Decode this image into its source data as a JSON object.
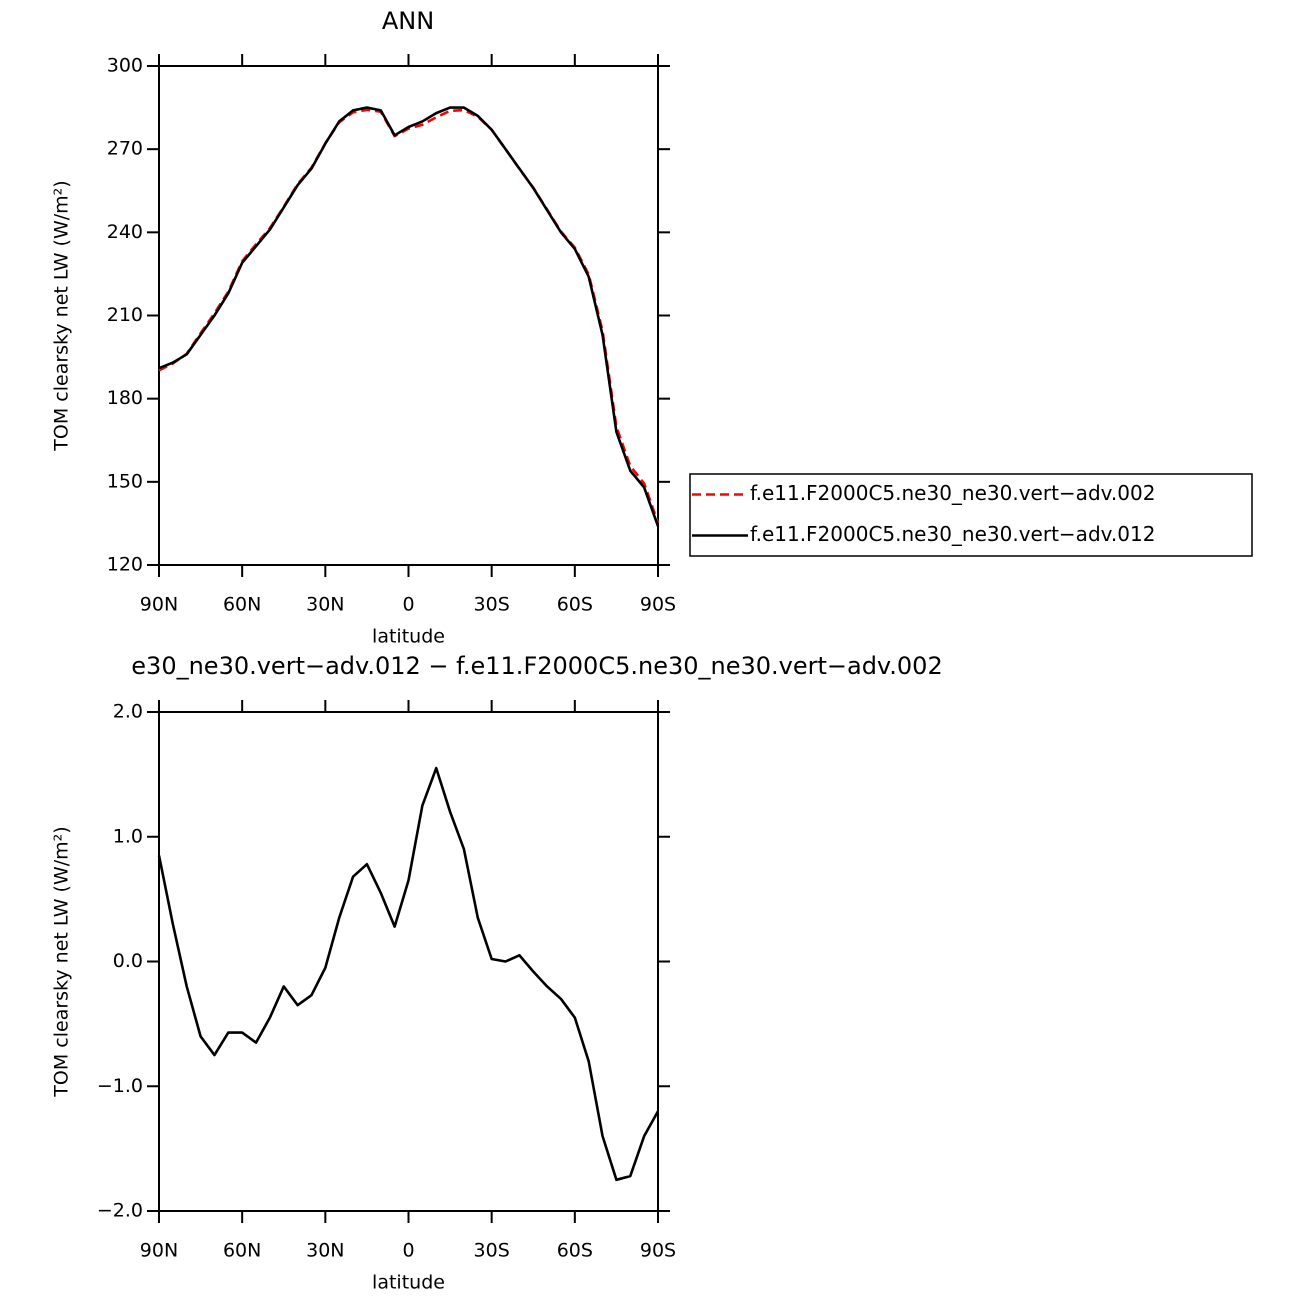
{
  "chart_data": [
    {
      "type": "line",
      "title": "ANN",
      "x_label": "latitude",
      "y_label": "TOM clearsky net LW (W/m²)",
      "x": [
        90,
        85,
        80,
        75,
        70,
        65,
        60,
        55,
        50,
        45,
        40,
        35,
        30,
        25,
        20,
        15,
        10,
        5,
        0,
        -5,
        -10,
        -15,
        -20,
        -25,
        -30,
        -35,
        -40,
        -45,
        -50,
        -55,
        -60,
        -65,
        -70,
        -75,
        -80,
        -85,
        -90
      ],
      "series": [
        {
          "name": "f.e11.F2000C5.ne30_ne30.vert−adv.002",
          "color": "#ff0000",
          "dash": true,
          "values": [
            190.2,
            192.7,
            196.2,
            203.6,
            210.8,
            218.6,
            229.6,
            235.7,
            241.5,
            249.2,
            257.4,
            263.3,
            272.1,
            279.7,
            283.3,
            284.2,
            283.5,
            274.7,
            277.4,
            278.8,
            281.5,
            283.8,
            284.1,
            281.7,
            277,
            270,
            262.9,
            256.1,
            248.2,
            240.3,
            234.5,
            224.8,
            204.4,
            169.8,
            155.7,
            149.4,
            135.2
          ]
        },
        {
          "name": "f.e11.F2000C5.ne30_ne30.vert−adv.012",
          "color": "#000000",
          "dash": false,
          "values": [
            191,
            193,
            196,
            203,
            210,
            218,
            229,
            235,
            241,
            249,
            257,
            263,
            272,
            280,
            284,
            285,
            284,
            275,
            278,
            280,
            283,
            285,
            285,
            282,
            277,
            270,
            263,
            256,
            248,
            240,
            234,
            224,
            203,
            168,
            154,
            148,
            134
          ]
        }
      ],
      "xlim": [
        90,
        -90
      ],
      "xticks": [
        {
          "value": 90,
          "label": "90N"
        },
        {
          "value": 60,
          "label": "60N"
        },
        {
          "value": 30,
          "label": "30N"
        },
        0,
        {
          "value": -30,
          "label": "30S"
        },
        {
          "value": -60,
          "label": "60S"
        },
        {
          "value": -90,
          "label": "90S"
        }
      ],
      "ylim": [
        120,
        300
      ],
      "yticks": [
        120,
        150,
        180,
        210,
        240,
        270,
        300
      ],
      "legend": "right"
    },
    {
      "type": "line",
      "title": "e30_ne30.vert−adv.012 − f.e11.F2000C5.ne30_ne30.vert−adv.002",
      "x_label": "latitude",
      "y_label": "TOM clearsky net LW (W/m²)",
      "x": [
        90,
        85,
        80,
        75,
        70,
        65,
        60,
        55,
        50,
        45,
        40,
        35,
        30,
        25,
        20,
        15,
        10,
        5,
        0,
        -5,
        -10,
        -15,
        -20,
        -25,
        -30,
        -35,
        -40,
        -45,
        -50,
        -55,
        -60,
        -65,
        -70,
        -75,
        -80,
        -85,
        -90
      ],
      "color": "#000000",
      "values": [
        0.85,
        0.3,
        -0.2,
        -0.6,
        -0.75,
        -0.57,
        -0.57,
        -0.65,
        -0.45,
        -0.2,
        -0.35,
        -0.27,
        -0.05,
        0.35,
        0.68,
        0.78,
        0.55,
        0.28,
        0.65,
        1.25,
        1.55,
        1.2,
        0.9,
        0.35,
        0.02,
        0,
        0.05,
        -0.08,
        -0.2,
        -0.3,
        -0.45,
        -0.8,
        -1.4,
        -1.75,
        -1.72,
        -1.4,
        -1.2
      ],
      "xlim": [
        90,
        -90
      ],
      "xticks": [
        {
          "value": 90,
          "label": "90N"
        },
        {
          "value": 60,
          "label": "60N"
        },
        {
          "value": 30,
          "label": "30N"
        },
        0,
        {
          "value": -30,
          "label": "30S"
        },
        {
          "value": -60,
          "label": "60S"
        },
        {
          "value": -90,
          "label": "90S"
        }
      ],
      "ylim": [
        -2,
        2
      ],
      "yticks": [
        {
          "value": -2,
          "label": "−2.0"
        },
        {
          "value": -1,
          "label": "−1.0"
        },
        {
          "value": 0,
          "label": "0.0"
        },
        {
          "value": 1,
          "label": "1.0"
        },
        {
          "value": 2,
          "label": "2.0"
        }
      ]
    }
  ]
}
